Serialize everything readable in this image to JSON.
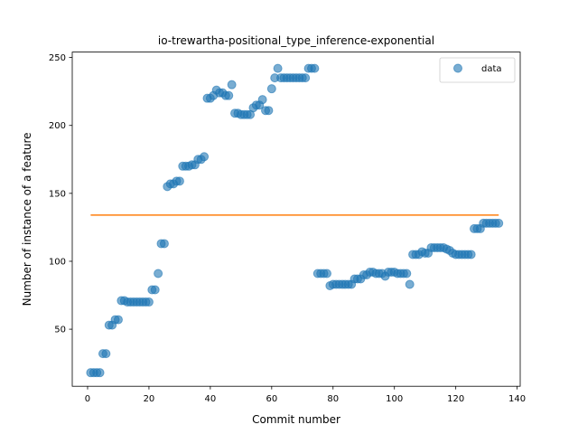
{
  "chart_data": {
    "type": "scatter",
    "title": "io-trewartha-positional_type_inference-exponential",
    "xlabel": "Commit number",
    "ylabel": "Number of instance of a feature",
    "xlim": [
      -5,
      141
    ],
    "ylim": [
      8,
      254
    ],
    "xticks": [
      0,
      20,
      40,
      60,
      80,
      100,
      120,
      140
    ],
    "yticks": [
      50,
      100,
      150,
      200,
      250
    ],
    "legend": {
      "position": "top-right",
      "entries": [
        "data"
      ]
    },
    "colors": {
      "data": "#1f77b4",
      "fit": "#ff7f0e"
    },
    "series": [
      {
        "name": "data",
        "kind": "scatter",
        "x": [
          1,
          2,
          3,
          4,
          5,
          6,
          7,
          8,
          9,
          10,
          11,
          12,
          13,
          14,
          15,
          16,
          17,
          18,
          19,
          20,
          21,
          22,
          23,
          24,
          25,
          26,
          27,
          28,
          29,
          30,
          31,
          32,
          33,
          34,
          35,
          36,
          37,
          38,
          39,
          40,
          41,
          42,
          43,
          44,
          45,
          46,
          47,
          48,
          49,
          50,
          51,
          52,
          53,
          54,
          55,
          56,
          57,
          58,
          59,
          60,
          61,
          62,
          63,
          64,
          65,
          66,
          67,
          68,
          69,
          70,
          71,
          72,
          73,
          74,
          75,
          76,
          77,
          78,
          79,
          80,
          81,
          82,
          83,
          84,
          85,
          86,
          87,
          88,
          89,
          90,
          91,
          92,
          93,
          94,
          95,
          96,
          97,
          98,
          99,
          100,
          101,
          102,
          103,
          104,
          105,
          106,
          107,
          108,
          109,
          110,
          111,
          112,
          113,
          114,
          115,
          116,
          117,
          118,
          119,
          120,
          121,
          122,
          123,
          124,
          125,
          126,
          127,
          128,
          129,
          130,
          131,
          132,
          133,
          134
        ],
        "y": [
          18,
          18,
          18,
          18,
          32,
          32,
          53,
          53,
          57,
          57,
          71,
          71,
          70,
          70,
          70,
          70,
          70,
          70,
          70,
          70,
          79,
          79,
          91,
          113,
          113,
          155,
          157,
          157,
          159,
          159,
          170,
          170,
          170,
          171,
          171,
          175,
          175,
          177,
          220,
          220,
          222,
          226,
          224,
          224,
          222,
          222,
          230,
          209,
          209,
          208,
          208,
          208,
          208,
          213,
          215,
          215,
          219,
          211,
          211,
          227,
          235,
          242,
          235,
          235,
          235,
          235,
          235,
          235,
          235,
          235,
          235,
          242,
          242,
          242,
          91,
          91,
          91,
          91,
          82,
          83,
          83,
          83,
          83,
          83,
          83,
          83,
          87,
          87,
          87,
          90,
          90,
          92,
          92,
          91,
          91,
          91,
          89,
          92,
          92,
          92,
          91,
          91,
          91,
          91,
          83,
          105,
          105,
          105,
          107,
          106,
          106,
          110,
          110,
          110,
          110,
          110,
          109,
          108,
          106,
          105,
          105,
          105,
          105,
          105,
          105,
          124,
          124,
          124,
          128,
          128,
          128,
          128,
          128,
          128
        ]
      },
      {
        "name": "",
        "kind": "line",
        "x": [
          1,
          134
        ],
        "y": [
          134,
          134
        ]
      }
    ]
  }
}
